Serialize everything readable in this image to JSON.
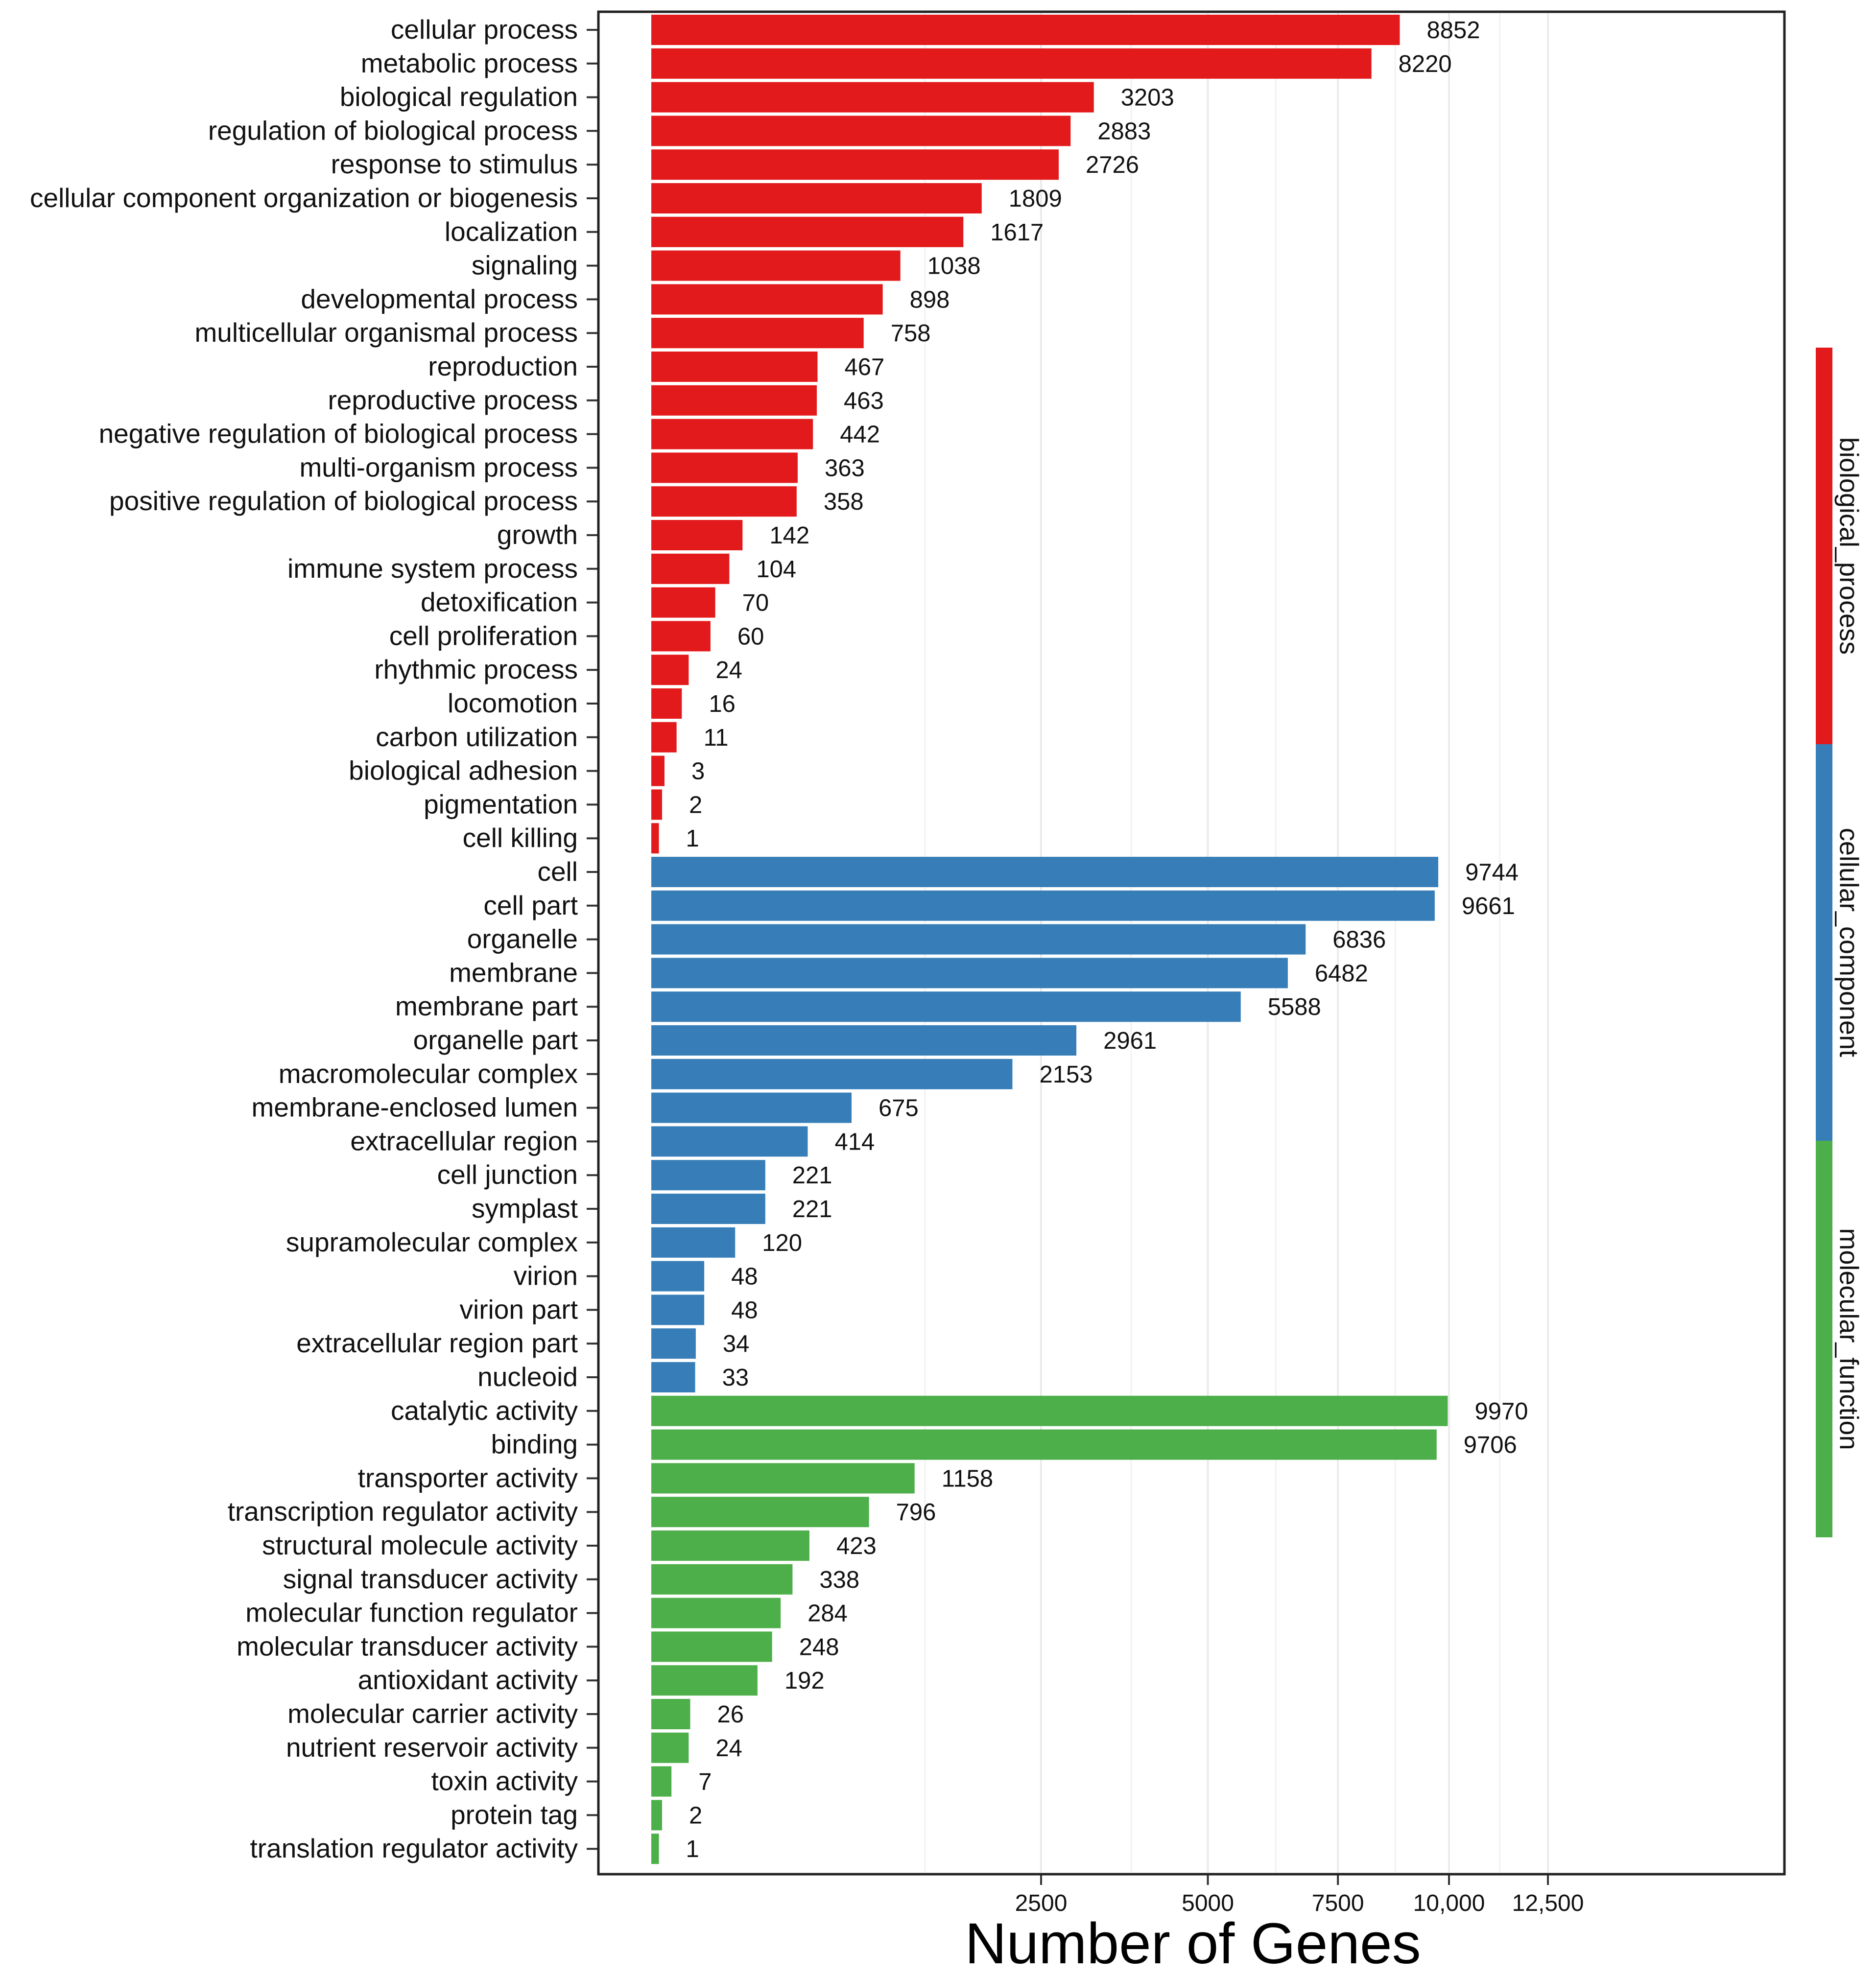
{
  "chart_data": {
    "type": "bar",
    "orientation": "horizontal",
    "xlabel": "Number of Genes",
    "x_scale": "sqrt",
    "xlim": [
      0,
      12500
    ],
    "x_ticks": [
      2500,
      5000,
      7500,
      10000,
      12500
    ],
    "x_tick_labels": [
      "2500",
      "5000",
      "7500",
      "10,000",
      "12,500"
    ],
    "grid": true,
    "legend": "right strip",
    "series": [
      {
        "name": "biological_process",
        "color": "#e31a1c",
        "categories": [
          "cellular process",
          "metabolic process",
          "biological regulation",
          "regulation of biological process",
          "response to stimulus",
          "cellular component organization or biogenesis",
          "localization",
          "signaling",
          "developmental process",
          "multicellular organismal process",
          "reproduction",
          "reproductive process",
          "negative regulation of biological process",
          "multi-organism process",
          "positive regulation of biological process",
          "growth",
          "immune system process",
          "detoxification",
          "cell proliferation",
          "rhythmic process",
          "locomotion",
          "carbon utilization",
          "biological adhesion",
          "pigmentation",
          "cell killing"
        ],
        "values": [
          8852,
          8220,
          3203,
          2883,
          2726,
          1809,
          1617,
          1038,
          898,
          758,
          467,
          463,
          442,
          363,
          358,
          142,
          104,
          70,
          60,
          24,
          16,
          11,
          3,
          2,
          1
        ]
      },
      {
        "name": "cellular_component",
        "color": "#377eb8",
        "categories": [
          "cell",
          "cell part",
          "organelle",
          "membrane",
          "membrane part",
          "organelle part",
          "macromolecular complex",
          "membrane-enclosed lumen",
          "extracellular region",
          "cell junction",
          "symplast",
          "supramolecular complex",
          "virion",
          "virion part",
          "extracellular region part",
          "nucleoid"
        ],
        "values": [
          9744,
          9661,
          6836,
          6482,
          5588,
          2961,
          2153,
          675,
          414,
          221,
          221,
          120,
          48,
          48,
          34,
          33
        ]
      },
      {
        "name": "molecular_function",
        "color": "#4daf4a",
        "categories": [
          "catalytic activity",
          "binding",
          "transporter activity",
          "transcription regulator activity",
          "structural molecule activity",
          "signal transducer activity",
          "molecular function regulator",
          "molecular transducer activity",
          "antioxidant activity",
          "molecular carrier activity",
          "nutrient reservoir activity",
          "toxin activity",
          "protein tag",
          "translation regulator activity"
        ],
        "values": [
          9970,
          9706,
          1158,
          796,
          423,
          338,
          284,
          248,
          192,
          26,
          24,
          7,
          2,
          1
        ]
      }
    ]
  }
}
